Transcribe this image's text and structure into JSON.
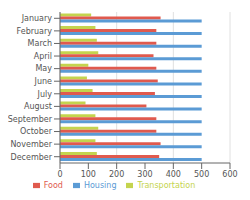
{
  "chart_data": {
    "type": "bar",
    "orientation": "horizontal",
    "categories": [
      "January",
      "February",
      "March",
      "April",
      "May",
      "June",
      "July",
      "August",
      "September",
      "October",
      "November",
      "December"
    ],
    "series": [
      {
        "name": "Transportation",
        "color": "#c4d44e",
        "values": [
          110,
          125,
          130,
          135,
          100,
          95,
          115,
          90,
          125,
          135,
          125,
          130
        ]
      },
      {
        "name": "Food",
        "color": "#e05a4e",
        "values": [
          355,
          340,
          340,
          330,
          340,
          345,
          335,
          305,
          340,
          340,
          355,
          350
        ]
      },
      {
        "name": "Housing",
        "color": "#5b9bd5",
        "values": [
          500,
          500,
          500,
          500,
          500,
          500,
          500,
          500,
          500,
          500,
          500,
          500
        ]
      }
    ],
    "xlim": [
      0,
      600
    ],
    "xticks": [
      0,
      100,
      200,
      300,
      400,
      500,
      600
    ],
    "grid": true,
    "legend": "bottom"
  }
}
